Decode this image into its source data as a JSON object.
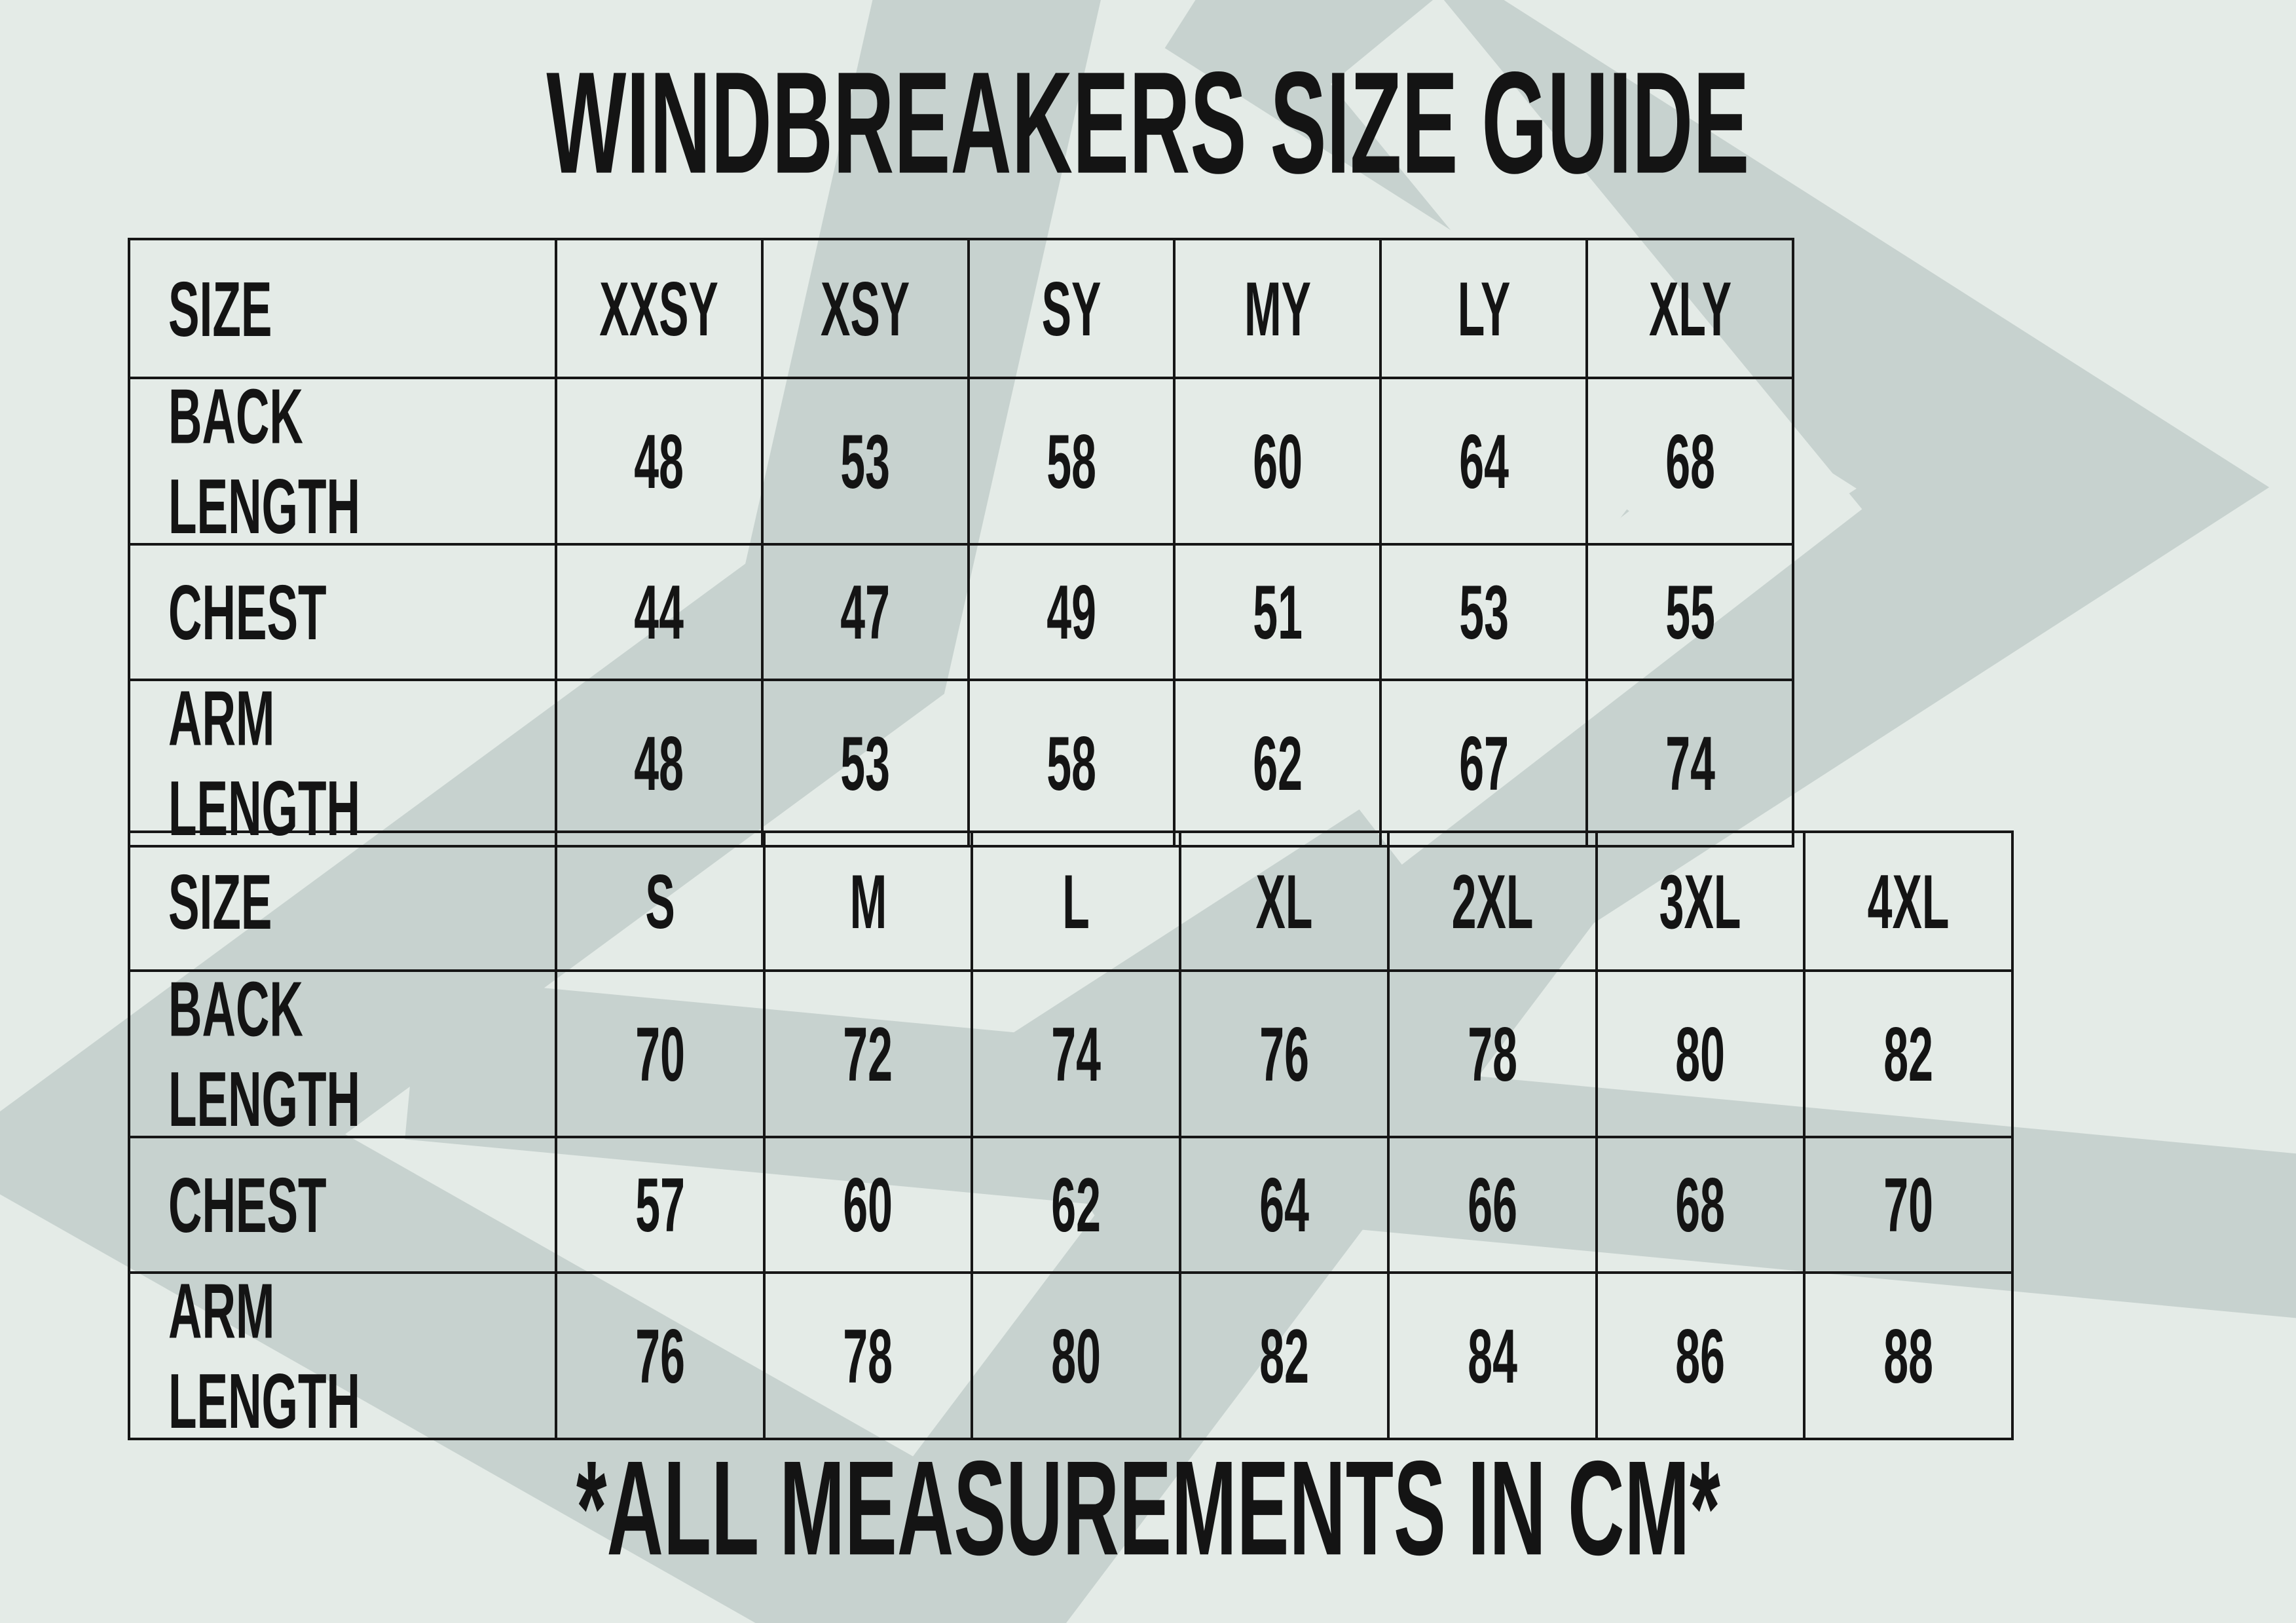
{
  "title": "WINDBREAKERS SIZE GUIDE",
  "footer": "*ALL MEASUREMENTS IN CM*",
  "colors": {
    "bg": "#e4ebe7",
    "wm": "#c7d2cf",
    "ink": "#141414",
    "border": "#161616"
  },
  "tables": [
    {
      "name": "youth-sizes",
      "header": [
        "SIZE",
        "XXSY",
        "XSY",
        "SY",
        "MY",
        "LY",
        "XLY"
      ],
      "rows": [
        {
          "label": "BACK LENGTH",
          "values": [
            "48",
            "53",
            "58",
            "60",
            "64",
            "68"
          ]
        },
        {
          "label": "CHEST",
          "values": [
            "44",
            "47",
            "49",
            "51",
            "53",
            "55"
          ]
        },
        {
          "label": "ARM LENGTH",
          "values": [
            "48",
            "53",
            "58",
            "62",
            "67",
            "74"
          ]
        }
      ]
    },
    {
      "name": "adult-sizes",
      "header": [
        "SIZE",
        "S",
        "M",
        "L",
        "XL",
        "2XL",
        "3XL",
        "4XL"
      ],
      "rows": [
        {
          "label": "BACK LENGTH",
          "values": [
            "70",
            "72",
            "74",
            "76",
            "78",
            "80",
            "82"
          ]
        },
        {
          "label": "CHEST",
          "values": [
            "57",
            "60",
            "62",
            "64",
            "66",
            "68",
            "70"
          ]
        },
        {
          "label": "ARM LENGTH",
          "values": [
            "76",
            "78",
            "80",
            "82",
            "84",
            "86",
            "88"
          ]
        }
      ]
    }
  ]
}
